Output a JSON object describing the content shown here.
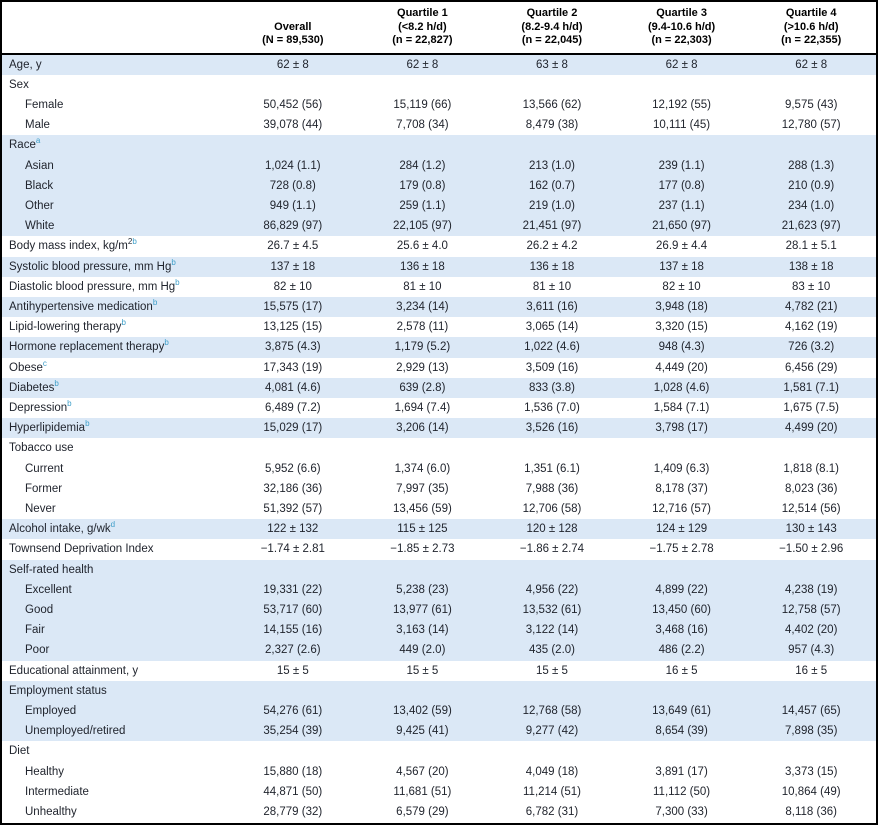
{
  "colors": {
    "stripe": "#dbe8f6",
    "superscript": "#3f9fc9",
    "frame": "#000000",
    "text": "#21252e"
  },
  "table": {
    "header": {
      "label_column": "",
      "columns": [
        {
          "title": "Overall",
          "range": "",
          "n": "(N = 89,530)"
        },
        {
          "title": "Quartile 1",
          "range": "(<8.2 h/d)",
          "n": "(n = 22,827)"
        },
        {
          "title": "Quartile 2",
          "range": "(8.2-9.4 h/d)",
          "n": "(n = 22,045)"
        },
        {
          "title": "Quartile 3",
          "range": "(9.4-10.6 h/d)",
          "n": "(n = 22,303)"
        },
        {
          "title": "Quartile 4",
          "range": "(>10.6 h/d)",
          "n": "(n = 22,355)"
        }
      ]
    },
    "rows": [
      {
        "label": "Age, y",
        "indent": false,
        "shade": true,
        "values": [
          "62 ± 8",
          "62 ± 8",
          "63 ± 8",
          "62 ± 8",
          "62 ± 8"
        ]
      },
      {
        "label": "Sex",
        "indent": false,
        "shade": false,
        "values": []
      },
      {
        "label": "Female",
        "indent": true,
        "shade": false,
        "values": [
          "50,452 (56)",
          "15,119 (66)",
          "13,566 (62)",
          "12,192 (55)",
          "9,575 (43)"
        ]
      },
      {
        "label": "Male",
        "indent": true,
        "shade": false,
        "values": [
          "39,078 (44)",
          "7,708 (34)",
          "8,479 (38)",
          "10,111 (45)",
          "12,780 (57)"
        ]
      },
      {
        "label": "Race",
        "sup": "a",
        "indent": false,
        "shade": true,
        "values": []
      },
      {
        "label": "Asian",
        "indent": true,
        "shade": true,
        "values": [
          "1,024 (1.1)",
          "284 (1.2)",
          "213 (1.0)",
          "239 (1.1)",
          "288 (1.3)"
        ]
      },
      {
        "label": "Black",
        "indent": true,
        "shade": true,
        "values": [
          "728 (0.8)",
          "179 (0.8)",
          "162 (0.7)",
          "177 (0.8)",
          "210 (0.9)"
        ]
      },
      {
        "label": "Other",
        "indent": true,
        "shade": true,
        "values": [
          "949 (1.1)",
          "259 (1.1)",
          "219 (1.0)",
          "237 (1.1)",
          "234 (1.0)"
        ]
      },
      {
        "label": "White",
        "indent": true,
        "shade": true,
        "values": [
          "86,829 (97)",
          "22,105 (97)",
          "21,451 (97)",
          "21,650 (97)",
          "21,623 (97)"
        ]
      },
      {
        "label": "Body mass index, kg/m",
        "sup_black": "2",
        "sup": "b",
        "indent": false,
        "shade": false,
        "values": [
          "26.7 ± 4.5",
          "25.6 ± 4.0",
          "26.2 ± 4.2",
          "26.9 ± 4.4",
          "28.1 ± 5.1"
        ]
      },
      {
        "label": "Systolic blood pressure, mm Hg",
        "sup": "b",
        "indent": false,
        "shade": true,
        "values": [
          "137 ± 18",
          "136 ± 18",
          "136 ± 18",
          "137 ± 18",
          "138 ± 18"
        ]
      },
      {
        "label": "Diastolic blood pressure, mm Hg",
        "sup": "b",
        "indent": false,
        "shade": false,
        "values": [
          "82 ± 10",
          "81 ± 10",
          "81 ± 10",
          "82 ± 10",
          "83 ± 10"
        ]
      },
      {
        "label": "Antihypertensive medication",
        "sup": "b",
        "indent": false,
        "shade": true,
        "values": [
          "15,575 (17)",
          "3,234 (14)",
          "3,611 (16)",
          "3,948 (18)",
          "4,782 (21)"
        ]
      },
      {
        "label": "Lipid-lowering therapy",
        "sup": "b",
        "indent": false,
        "shade": false,
        "values": [
          "13,125 (15)",
          "2,578 (11)",
          "3,065 (14)",
          "3,320 (15)",
          "4,162 (19)"
        ]
      },
      {
        "label": "Hormone replacement therapy",
        "sup": "b",
        "indent": false,
        "shade": true,
        "values": [
          "3,875 (4.3)",
          "1,179 (5.2)",
          "1,022 (4.6)",
          "948 (4.3)",
          "726 (3.2)"
        ]
      },
      {
        "label": "Obese",
        "sup": "c",
        "indent": false,
        "shade": false,
        "values": [
          "17,343 (19)",
          "2,929 (13)",
          "3,509 (16)",
          "4,449 (20)",
          "6,456 (29)"
        ]
      },
      {
        "label": "Diabetes",
        "sup": "b",
        "indent": false,
        "shade": true,
        "values": [
          "4,081 (4.6)",
          "639 (2.8)",
          "833 (3.8)",
          "1,028 (4.6)",
          "1,581 (7.1)"
        ]
      },
      {
        "label": "Depression",
        "sup": "b",
        "indent": false,
        "shade": false,
        "values": [
          "6,489 (7.2)",
          "1,694 (7.4)",
          "1,536 (7.0)",
          "1,584 (7.1)",
          "1,675 (7.5)"
        ]
      },
      {
        "label": "Hyperlipidemia",
        "sup": "b",
        "indent": false,
        "shade": true,
        "values": [
          "15,029 (17)",
          "3,206 (14)",
          "3,526 (16)",
          "3,798 (17)",
          "4,499 (20)"
        ]
      },
      {
        "label": "Tobacco use",
        "indent": false,
        "shade": false,
        "values": []
      },
      {
        "label": "Current",
        "indent": true,
        "shade": false,
        "values": [
          "5,952 (6.6)",
          "1,374 (6.0)",
          "1,351 (6.1)",
          "1,409 (6.3)",
          "1,818 (8.1)"
        ]
      },
      {
        "label": "Former",
        "indent": true,
        "shade": false,
        "values": [
          "32,186 (36)",
          "7,997 (35)",
          "7,988 (36)",
          "8,178 (37)",
          "8,023 (36)"
        ]
      },
      {
        "label": "Never",
        "indent": true,
        "shade": false,
        "values": [
          "51,392 (57)",
          "13,456 (59)",
          "12,706 (58)",
          "12,716 (57)",
          "12,514 (56)"
        ]
      },
      {
        "label": "Alcohol intake, g/wk",
        "sup": "d",
        "indent": false,
        "shade": true,
        "values": [
          "122 ± 132",
          "115 ± 125",
          "120 ± 128",
          "124 ± 129",
          "130 ± 143"
        ]
      },
      {
        "label": "Townsend Deprivation Index",
        "indent": false,
        "shade": false,
        "values": [
          "−1.74 ± 2.81",
          "−1.85 ± 2.73",
          "−1.86 ± 2.74",
          "−1.75 ± 2.78",
          "−1.50 ± 2.96"
        ]
      },
      {
        "label": "Self-rated health",
        "indent": false,
        "shade": true,
        "values": []
      },
      {
        "label": "Excellent",
        "indent": true,
        "shade": true,
        "values": [
          "19,331 (22)",
          "5,238 (23)",
          "4,956 (22)",
          "4,899 (22)",
          "4,238 (19)"
        ]
      },
      {
        "label": "Good",
        "indent": true,
        "shade": true,
        "values": [
          "53,717 (60)",
          "13,977 (61)",
          "13,532 (61)",
          "13,450 (60)",
          "12,758 (57)"
        ]
      },
      {
        "label": "Fair",
        "indent": true,
        "shade": true,
        "values": [
          "14,155 (16)",
          "3,163 (14)",
          "3,122 (14)",
          "3,468 (16)",
          "4,402 (20)"
        ]
      },
      {
        "label": "Poor",
        "indent": true,
        "shade": true,
        "values": [
          "2,327 (2.6)",
          "449 (2.0)",
          "435 (2.0)",
          "486 (2.2)",
          "957 (4.3)"
        ]
      },
      {
        "label": "Educational attainment, y",
        "indent": false,
        "shade": false,
        "values": [
          "15 ± 5",
          "15 ± 5",
          "15 ± 5",
          "16 ± 5",
          "16 ± 5"
        ]
      },
      {
        "label": "Employment status",
        "indent": false,
        "shade": true,
        "values": []
      },
      {
        "label": "Employed",
        "indent": true,
        "shade": true,
        "values": [
          "54,276 (61)",
          "13,402 (59)",
          "12,768 (58)",
          "13,649 (61)",
          "14,457 (65)"
        ]
      },
      {
        "label": "Unemployed/retired",
        "indent": true,
        "shade": true,
        "values": [
          "35,254 (39)",
          "9,425 (41)",
          "9,277 (42)",
          "8,654 (39)",
          "7,898 (35)"
        ]
      },
      {
        "label": "Diet",
        "indent": false,
        "shade": false,
        "values": []
      },
      {
        "label": "Healthy",
        "indent": true,
        "shade": false,
        "values": [
          "15,880 (18)",
          "4,567 (20)",
          "4,049 (18)",
          "3,891 (17)",
          "3,373 (15)"
        ]
      },
      {
        "label": "Intermediate",
        "indent": true,
        "shade": false,
        "values": [
          "44,871 (50)",
          "11,681 (51)",
          "11,214 (51)",
          "11,112 (50)",
          "10,864 (49)"
        ]
      },
      {
        "label": "Unhealthy",
        "indent": true,
        "shade": false,
        "values": [
          "28,779 (32)",
          "6,579 (29)",
          "6,782 (31)",
          "7,300 (33)",
          "8,118 (36)"
        ]
      }
    ]
  }
}
